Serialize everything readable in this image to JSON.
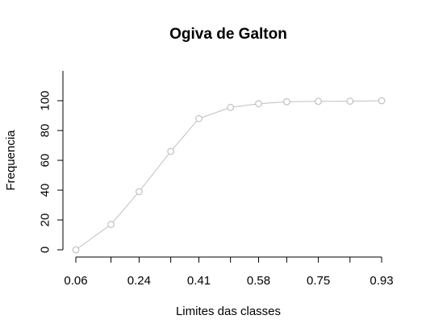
{
  "chart_data": {
    "type": "line",
    "title": "Ogiva de Galton",
    "xlabel": "Limites das classes",
    "ylabel": "Frequencia",
    "x": [
      0.06,
      0.16,
      0.24,
      0.33,
      0.41,
      0.5,
      0.58,
      0.66,
      0.75,
      0.84,
      0.93
    ],
    "series": [
      {
        "values": [
          0,
          17,
          39,
          66,
          88,
          95.5,
          98,
          99.3,
          99.6,
          99.7,
          100
        ],
        "color": "#c0c0c0"
      }
    ],
    "x_tick_labels": [
      "0.06",
      "0.24",
      "0.41",
      "0.58",
      "0.75",
      "0.93"
    ],
    "y_ticks": [
      0,
      20,
      40,
      60,
      80,
      100
    ],
    "y_tick_labels": [
      "0",
      "20",
      "40",
      "60",
      "80",
      "100"
    ],
    "ylim": [
      0,
      120
    ],
    "grid": false,
    "legend": "none"
  }
}
